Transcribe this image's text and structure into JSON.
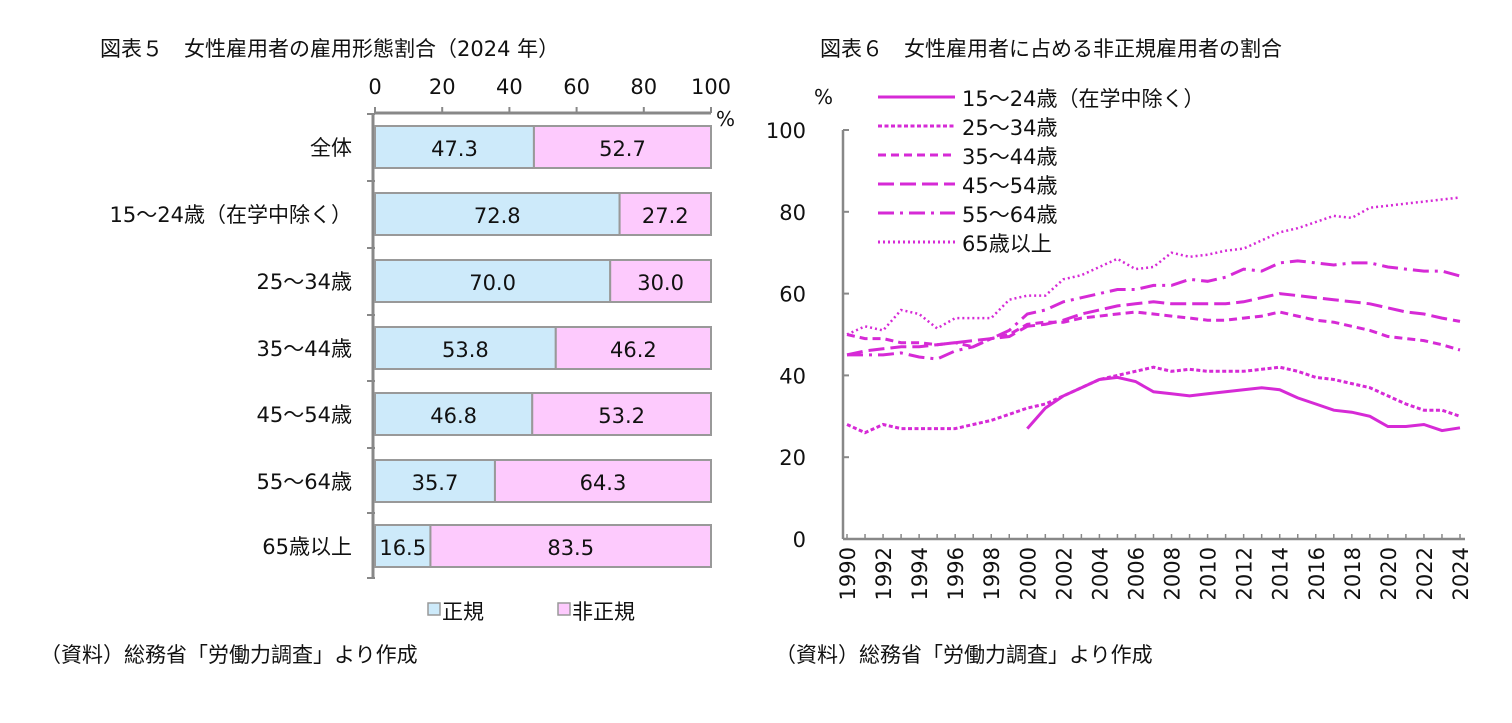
{
  "chart_data": [
    {
      "type": "bar",
      "stacked": true,
      "orientation": "horizontal",
      "title": "図表５　女性雇用者の雇用形態割合（2024 年）",
      "unit": "%",
      "xlim": [
        0,
        100
      ],
      "xticks": [
        "0",
        "20",
        "40",
        "60",
        "80",
        "100"
      ],
      "categories": [
        "全体",
        "15～24歳（在学中除く）",
        "25～34歳",
        "35～44歳",
        "45～54歳",
        "55～64歳",
        "65歳以上"
      ],
      "series": [
        {
          "name": "正規",
          "color": "#cdeafa",
          "values": [
            47.3,
            72.8,
            70.0,
            53.8,
            46.8,
            35.7,
            16.5
          ]
        },
        {
          "name": "非正規",
          "color": "#fdcafd",
          "values": [
            52.7,
            27.2,
            30.0,
            46.2,
            53.2,
            64.3,
            83.5
          ]
        }
      ],
      "legend_position": "bottom",
      "source": "（資料）総務省「労働力調査」より作成"
    },
    {
      "type": "line",
      "title": "図表６　女性雇用者に占める非正規雇用者の割合",
      "unit": "%",
      "ylim": [
        0,
        100
      ],
      "yticks": [
        "0",
        "20",
        "40",
        "60",
        "80",
        "100"
      ],
      "x": [
        1990,
        1991,
        1992,
        1993,
        1994,
        1995,
        1996,
        1997,
        1998,
        1999,
        2000,
        2001,
        2002,
        2003,
        2004,
        2005,
        2006,
        2007,
        2008,
        2009,
        2010,
        2011,
        2012,
        2013,
        2014,
        2015,
        2016,
        2017,
        2018,
        2019,
        2020,
        2021,
        2022,
        2023,
        2024
      ],
      "xticks": [
        "1990",
        "1992",
        "1994",
        "1996",
        "1998",
        "2000",
        "2002",
        "2004",
        "2006",
        "2008",
        "2010",
        "2012",
        "2014",
        "2016",
        "2018",
        "2020",
        "2022",
        "2024"
      ],
      "color": "#d62ad6",
      "series": [
        {
          "name": "15～24歳（在学中除く）",
          "style": "solid",
          "values": [
            null,
            null,
            null,
            null,
            null,
            null,
            null,
            null,
            null,
            null,
            27,
            32,
            35,
            37,
            39,
            39.5,
            38.5,
            36,
            35.5,
            35,
            35.5,
            36,
            36.5,
            37,
            36.5,
            34.5,
            33,
            31.5,
            31,
            30,
            27.5,
            27.5,
            28,
            26.5,
            27.2
          ]
        },
        {
          "name": "25～34歳",
          "style": "short-dash",
          "values": [
            28,
            26,
            28,
            27,
            27,
            27,
            27,
            28,
            29,
            30.5,
            32,
            33,
            35,
            37,
            39,
            40,
            41,
            42,
            41,
            41.5,
            41,
            41,
            41,
            41.5,
            42,
            41,
            39.5,
            39,
            38,
            37,
            35,
            33,
            31.5,
            31.5,
            30
          ]
        },
        {
          "name": "35～44歳",
          "style": "dash",
          "values": [
            50,
            49,
            49,
            48,
            48,
            47.5,
            48,
            47,
            49,
            50,
            52.5,
            53,
            53,
            54,
            54.5,
            55,
            55.5,
            55,
            54.5,
            54,
            53.5,
            53.5,
            54,
            54.5,
            55.5,
            54.5,
            53.5,
            53,
            52,
            51,
            49.5,
            49,
            48.5,
            47.5,
            46.2
          ]
        },
        {
          "name": "45～54歳",
          "style": "long-dash",
          "values": [
            45,
            46,
            46.5,
            47,
            47,
            47.5,
            48,
            48.5,
            49,
            49.5,
            52,
            52.5,
            53.5,
            55,
            56,
            57,
            57.5,
            58,
            57.5,
            57.5,
            57.5,
            57.5,
            58,
            59,
            60,
            59.5,
            59,
            58.5,
            58,
            57.5,
            56.5,
            55.5,
            55,
            54,
            53.2
          ]
        },
        {
          "name": "55～64歳",
          "style": "dash-dot",
          "values": [
            45,
            45,
            45,
            45.5,
            44.5,
            44,
            46,
            47,
            49,
            51,
            55,
            56,
            58,
            59,
            60,
            61,
            61,
            62,
            62,
            63.5,
            63,
            64,
            66,
            65.5,
            67.5,
            68,
            67.5,
            67,
            67.5,
            67.5,
            66.5,
            66,
            65.5,
            65.5,
            64.3
          ]
        },
        {
          "name": "65歳以上",
          "style": "dotted",
          "values": [
            50,
            52,
            51,
            56,
            55,
            51.5,
            54,
            54,
            54,
            58.5,
            59.5,
            59.5,
            63.5,
            64.5,
            66.5,
            68.5,
            66,
            66.5,
            70,
            69,
            69.5,
            70.5,
            71,
            73,
            75,
            76,
            77.5,
            79,
            78.5,
            81,
            81.5,
            82,
            82.5,
            83,
            83.5
          ]
        }
      ],
      "legend_position": "top-left",
      "source": "（資料）総務省「労働力調査」より作成"
    }
  ]
}
